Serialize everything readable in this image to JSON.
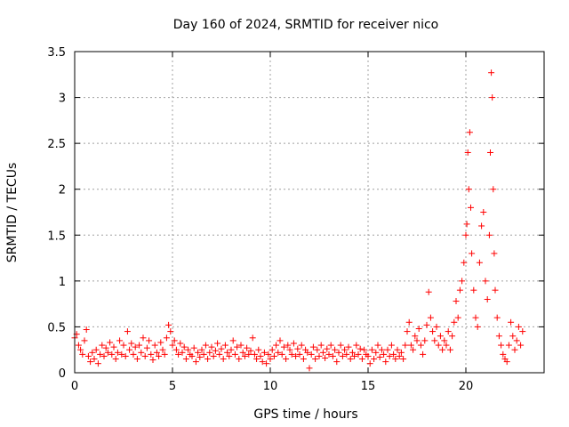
{
  "chart_data": {
    "type": "scatter",
    "title": "Day 160 of 2024, SRMTID for receiver nico",
    "xlabel": "GPS time / hours",
    "ylabel": "SRMTID / TECUs",
    "xlim": [
      0,
      24
    ],
    "ylim": [
      0,
      3.5
    ],
    "xticks": [
      0,
      5,
      10,
      15,
      20
    ],
    "xtick_labels": [
      "0",
      "5",
      "10",
      "15",
      "20"
    ],
    "yticks": [
      0,
      0.5,
      1,
      1.5,
      2,
      2.5,
      3,
      3.5
    ],
    "ytick_labels": [
      "0",
      "0.5",
      "1",
      "1.5",
      "2",
      "2.5",
      "3",
      "3.5"
    ],
    "grid": true,
    "marker": "+",
    "color": "#ff0000",
    "series": [
      {
        "name": "SRMTID",
        "points": [
          [
            0.0,
            0.38
          ],
          [
            0.1,
            0.42
          ],
          [
            0.2,
            0.3
          ],
          [
            0.3,
            0.25
          ],
          [
            0.4,
            0.2
          ],
          [
            0.5,
            0.35
          ],
          [
            0.6,
            0.47
          ],
          [
            0.7,
            0.18
          ],
          [
            0.8,
            0.12
          ],
          [
            0.9,
            0.22
          ],
          [
            1.0,
            0.15
          ],
          [
            1.1,
            0.25
          ],
          [
            1.2,
            0.1
          ],
          [
            1.3,
            0.2
          ],
          [
            1.4,
            0.3
          ],
          [
            1.5,
            0.18
          ],
          [
            1.6,
            0.27
          ],
          [
            1.7,
            0.22
          ],
          [
            1.8,
            0.33
          ],
          [
            1.9,
            0.2
          ],
          [
            2.0,
            0.28
          ],
          [
            2.1,
            0.15
          ],
          [
            2.2,
            0.22
          ],
          [
            2.3,
            0.35
          ],
          [
            2.4,
            0.2
          ],
          [
            2.5,
            0.3
          ],
          [
            2.6,
            0.18
          ],
          [
            2.7,
            0.45
          ],
          [
            2.8,
            0.25
          ],
          [
            2.9,
            0.32
          ],
          [
            3.0,
            0.2
          ],
          [
            3.1,
            0.28
          ],
          [
            3.2,
            0.15
          ],
          [
            3.3,
            0.3
          ],
          [
            3.4,
            0.22
          ],
          [
            3.5,
            0.38
          ],
          [
            3.6,
            0.18
          ],
          [
            3.7,
            0.27
          ],
          [
            3.8,
            0.35
          ],
          [
            3.9,
            0.2
          ],
          [
            4.0,
            0.14
          ],
          [
            4.1,
            0.3
          ],
          [
            4.2,
            0.22
          ],
          [
            4.3,
            0.18
          ],
          [
            4.4,
            0.33
          ],
          [
            4.5,
            0.25
          ],
          [
            4.6,
            0.2
          ],
          [
            4.7,
            0.38
          ],
          [
            4.8,
            0.52
          ],
          [
            4.9,
            0.45
          ],
          [
            5.0,
            0.3
          ],
          [
            5.1,
            0.35
          ],
          [
            5.2,
            0.25
          ],
          [
            5.3,
            0.2
          ],
          [
            5.4,
            0.32
          ],
          [
            5.5,
            0.22
          ],
          [
            5.6,
            0.28
          ],
          [
            5.7,
            0.15
          ],
          [
            5.8,
            0.25
          ],
          [
            5.9,
            0.2
          ],
          [
            6.0,
            0.18
          ],
          [
            6.1,
            0.27
          ],
          [
            6.2,
            0.12
          ],
          [
            6.3,
            0.22
          ],
          [
            6.4,
            0.17
          ],
          [
            6.5,
            0.25
          ],
          [
            6.6,
            0.2
          ],
          [
            6.7,
            0.3
          ],
          [
            6.8,
            0.15
          ],
          [
            6.9,
            0.22
          ],
          [
            7.0,
            0.28
          ],
          [
            7.1,
            0.18
          ],
          [
            7.2,
            0.24
          ],
          [
            7.3,
            0.32
          ],
          [
            7.4,
            0.2
          ],
          [
            7.5,
            0.26
          ],
          [
            7.6,
            0.15
          ],
          [
            7.7,
            0.3
          ],
          [
            7.8,
            0.22
          ],
          [
            7.9,
            0.18
          ],
          [
            8.0,
            0.25
          ],
          [
            8.1,
            0.35
          ],
          [
            8.2,
            0.2
          ],
          [
            8.3,
            0.28
          ],
          [
            8.4,
            0.15
          ],
          [
            8.5,
            0.3
          ],
          [
            8.6,
            0.22
          ],
          [
            8.7,
            0.18
          ],
          [
            8.8,
            0.27
          ],
          [
            8.9,
            0.2
          ],
          [
            9.0,
            0.24
          ],
          [
            9.1,
            0.38
          ],
          [
            9.2,
            0.2
          ],
          [
            9.3,
            0.15
          ],
          [
            9.4,
            0.25
          ],
          [
            9.5,
            0.18
          ],
          [
            9.6,
            0.12
          ],
          [
            9.7,
            0.22
          ],
          [
            9.8,
            0.1
          ],
          [
            9.9,
            0.2
          ],
          [
            10.0,
            0.15
          ],
          [
            10.1,
            0.25
          ],
          [
            10.2,
            0.18
          ],
          [
            10.3,
            0.3
          ],
          [
            10.4,
            0.22
          ],
          [
            10.5,
            0.35
          ],
          [
            10.6,
            0.2
          ],
          [
            10.7,
            0.28
          ],
          [
            10.8,
            0.15
          ],
          [
            10.9,
            0.3
          ],
          [
            11.0,
            0.25
          ],
          [
            11.1,
            0.2
          ],
          [
            11.2,
            0.32
          ],
          [
            11.3,
            0.18
          ],
          [
            11.4,
            0.26
          ],
          [
            11.5,
            0.2
          ],
          [
            11.6,
            0.3
          ],
          [
            11.7,
            0.15
          ],
          [
            11.8,
            0.25
          ],
          [
            11.9,
            0.22
          ],
          [
            12.0,
            0.05
          ],
          [
            12.1,
            0.2
          ],
          [
            12.2,
            0.28
          ],
          [
            12.3,
            0.15
          ],
          [
            12.4,
            0.25
          ],
          [
            12.5,
            0.18
          ],
          [
            12.6,
            0.3
          ],
          [
            12.7,
            0.22
          ],
          [
            12.8,
            0.16
          ],
          [
            12.9,
            0.26
          ],
          [
            13.0,
            0.2
          ],
          [
            13.1,
            0.3
          ],
          [
            13.2,
            0.18
          ],
          [
            13.3,
            0.25
          ],
          [
            13.4,
            0.12
          ],
          [
            13.5,
            0.22
          ],
          [
            13.6,
            0.3
          ],
          [
            13.7,
            0.18
          ],
          [
            13.8,
            0.25
          ],
          [
            13.9,
            0.2
          ],
          [
            14.0,
            0.28
          ],
          [
            14.1,
            0.15
          ],
          [
            14.2,
            0.22
          ],
          [
            14.3,
            0.18
          ],
          [
            14.4,
            0.3
          ],
          [
            14.5,
            0.2
          ],
          [
            14.6,
            0.26
          ],
          [
            14.7,
            0.15
          ],
          [
            14.8,
            0.25
          ],
          [
            14.9,
            0.2
          ],
          [
            15.0,
            0.18
          ],
          [
            15.1,
            0.1
          ],
          [
            15.2,
            0.25
          ],
          [
            15.3,
            0.15
          ],
          [
            15.4,
            0.22
          ],
          [
            15.5,
            0.3
          ],
          [
            15.6,
            0.17
          ],
          [
            15.7,
            0.25
          ],
          [
            15.8,
            0.2
          ],
          [
            15.9,
            0.12
          ],
          [
            16.0,
            0.25
          ],
          [
            16.1,
            0.18
          ],
          [
            16.2,
            0.3
          ],
          [
            16.3,
            0.2
          ],
          [
            16.4,
            0.15
          ],
          [
            16.5,
            0.25
          ],
          [
            16.6,
            0.18
          ],
          [
            16.7,
            0.22
          ],
          [
            16.8,
            0.15
          ],
          [
            16.9,
            0.3
          ],
          [
            17.0,
            0.45
          ],
          [
            17.1,
            0.55
          ],
          [
            17.2,
            0.3
          ],
          [
            17.3,
            0.25
          ],
          [
            17.4,
            0.4
          ],
          [
            17.5,
            0.35
          ],
          [
            17.6,
            0.48
          ],
          [
            17.7,
            0.3
          ],
          [
            17.8,
            0.2
          ],
          [
            17.9,
            0.35
          ],
          [
            18.0,
            0.52
          ],
          [
            18.1,
            0.88
          ],
          [
            18.2,
            0.6
          ],
          [
            18.3,
            0.45
          ],
          [
            18.4,
            0.35
          ],
          [
            18.5,
            0.5
          ],
          [
            18.6,
            0.3
          ],
          [
            18.7,
            0.4
          ],
          [
            18.8,
            0.25
          ],
          [
            18.9,
            0.35
          ],
          [
            19.0,
            0.3
          ],
          [
            19.1,
            0.45
          ],
          [
            19.2,
            0.25
          ],
          [
            19.3,
            0.4
          ],
          [
            19.4,
            0.55
          ],
          [
            19.5,
            0.78
          ],
          [
            19.6,
            0.6
          ],
          [
            19.7,
            0.9
          ],
          [
            19.8,
            1.0
          ],
          [
            19.9,
            1.2
          ],
          [
            20.0,
            1.5
          ],
          [
            20.05,
            1.62
          ],
          [
            20.1,
            2.4
          ],
          [
            20.15,
            2.0
          ],
          [
            20.2,
            2.62
          ],
          [
            20.25,
            1.8
          ],
          [
            20.3,
            1.3
          ],
          [
            20.4,
            0.9
          ],
          [
            20.5,
            0.6
          ],
          [
            20.6,
            0.5
          ],
          [
            20.7,
            1.2
          ],
          [
            20.8,
            1.6
          ],
          [
            20.9,
            1.75
          ],
          [
            21.0,
            1.0
          ],
          [
            21.1,
            0.8
          ],
          [
            21.2,
            1.5
          ],
          [
            21.25,
            2.4
          ],
          [
            21.3,
            3.27
          ],
          [
            21.35,
            3.0
          ],
          [
            21.4,
            2.0
          ],
          [
            21.45,
            1.3
          ],
          [
            21.5,
            0.9
          ],
          [
            21.6,
            0.6
          ],
          [
            21.7,
            0.4
          ],
          [
            21.8,
            0.3
          ],
          [
            21.9,
            0.2
          ],
          [
            22.0,
            0.15
          ],
          [
            22.1,
            0.12
          ],
          [
            22.2,
            0.3
          ],
          [
            22.3,
            0.55
          ],
          [
            22.4,
            0.4
          ],
          [
            22.5,
            0.25
          ],
          [
            22.6,
            0.35
          ],
          [
            22.7,
            0.5
          ],
          [
            22.8,
            0.3
          ],
          [
            22.9,
            0.45
          ]
        ]
      }
    ]
  }
}
